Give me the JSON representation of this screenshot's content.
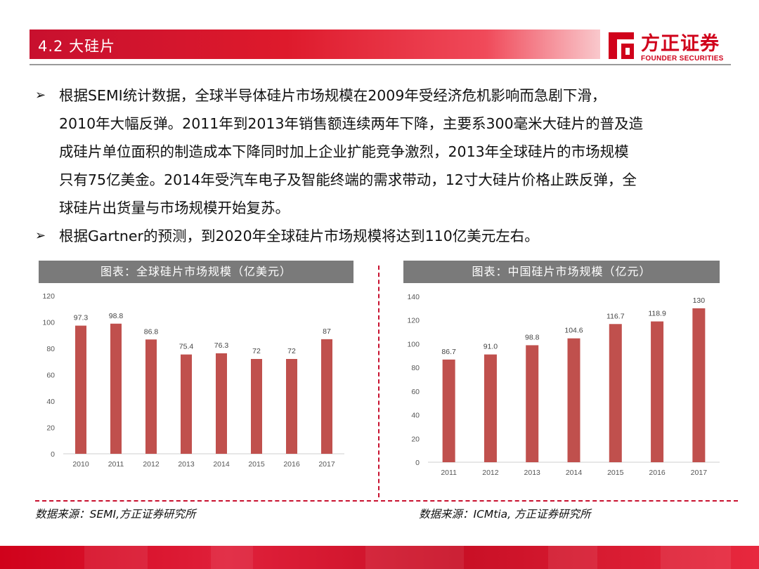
{
  "header": {
    "title": "4.2 大硅片"
  },
  "logo": {
    "cn": "方正证券",
    "en": "FOUNDER SECURITIES"
  },
  "bullets": [
    {
      "lines": [
        "根据SEMI统计数据，全球半导体硅片市场规模在2009年受经济危机影响而急剧下滑，",
        "2010年大幅反弹。2011年到2013年销售额连续两年下降，主要系300毫米大硅片的普及造",
        "成硅片单位面积的制造成本下降同时加上企业扩能竞争激烈，2013年全球硅片的市场规模",
        "只有75亿美金。2014年受汽车电子及智能终端的需求带动，12寸大硅片价格止跌反弹，全",
        "球硅片出货量与市场规模开始复苏。"
      ]
    },
    {
      "lines": [
        "根据Gartner的预测，到2020年全球硅片市场规模将达到110亿美元左右。"
      ]
    }
  ],
  "chart_data": [
    {
      "type": "bar",
      "title": "图表：全球硅片市场规模（亿美元）",
      "categories": [
        "2010",
        "2011",
        "2012",
        "2013",
        "2014",
        "2015",
        "2016",
        "2017"
      ],
      "values": [
        97.3,
        98.8,
        86.8,
        75.4,
        76.3,
        72,
        72,
        87
      ],
      "value_labels": [
        "97.3",
        "98.8",
        "86.8",
        "75.4",
        "76.3",
        "72",
        "72",
        "87"
      ],
      "ylim": [
        0,
        120
      ],
      "yticks": [
        0,
        20,
        40,
        60,
        80,
        100,
        120
      ],
      "xlabel": "",
      "ylabel": "",
      "bar_color": "#c0504d",
      "grid": false,
      "source": "数据来源：SEMI,方正证券研究所"
    },
    {
      "type": "bar",
      "title": "图表：中国硅片市场规模（亿元）",
      "categories": [
        "2011",
        "2012",
        "2013",
        "2014",
        "2015",
        "2016",
        "2017"
      ],
      "values": [
        86.7,
        91.0,
        98.8,
        104.6,
        116.7,
        118.9,
        130
      ],
      "value_labels": [
        "86.7",
        "91.0",
        "98.8",
        "104.6",
        "116.7",
        "118.9",
        "130"
      ],
      "ylim": [
        0,
        140
      ],
      "yticks": [
        0,
        20,
        40,
        60,
        80,
        100,
        120,
        140
      ],
      "xlabel": "",
      "ylabel": "",
      "bar_color": "#c0504d",
      "grid": false,
      "source": "数据来源：ICMtia, 方正证券研究所"
    }
  ],
  "colors": {
    "accent": "#c8102e",
    "panel_title_bg": "#7a7a7a"
  }
}
